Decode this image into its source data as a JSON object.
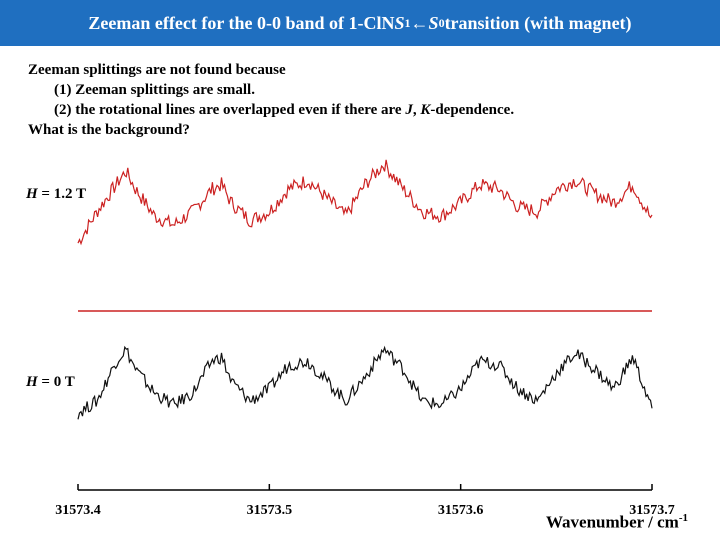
{
  "header": {
    "title_pre": "Zeeman effect for the 0-0 band of 1-ClN ",
    "s1": "S",
    "s1_sub": "1",
    "arrow": "←",
    "s0": "S",
    "s0_sub": "0",
    "title_post": " transition (with magnet)"
  },
  "notes": {
    "line1": "Zeeman splittings are not found because",
    "line2": "(1) Zeeman splittings are small.",
    "line3_pre": "(2) the rotational lines are overlapped even if there are ",
    "line3_j": "J",
    "line3_mid": ", ",
    "line3_k": "K",
    "line3_post": "-dependence.",
    "line4": "What is the background?"
  },
  "chart_data": {
    "type": "line",
    "title": "",
    "xlabel": "Wavenumber / cm",
    "xlabel_sup": "-1",
    "xlim": [
      31573.4,
      31573.7
    ],
    "x_ticks": [
      "31573.4",
      "31573.5",
      "31573.6",
      "31573.7"
    ],
    "separator_color": "#cc2222",
    "series": [
      {
        "name": "H = 1.2 T",
        "color": "#cc2222",
        "label_italic": "H",
        "label_rest": " = 1.2 T",
        "x": [
          31573.4,
          31573.41,
          31573.42,
          31573.425,
          31573.43,
          31573.44,
          31573.45,
          31573.46,
          31573.47,
          31573.475,
          31573.48,
          31573.49,
          31573.5,
          31573.51,
          31573.52,
          31573.53,
          31573.54,
          31573.55,
          31573.56,
          31573.57,
          31573.58,
          31573.59,
          31573.6,
          31573.61,
          31573.62,
          31573.63,
          31573.64,
          31573.65,
          31573.66,
          31573.67,
          31573.68,
          31573.69,
          31573.7
        ],
        "values": [
          0.1,
          0.45,
          0.75,
          0.9,
          0.7,
          0.4,
          0.3,
          0.45,
          0.7,
          0.75,
          0.55,
          0.35,
          0.45,
          0.7,
          0.8,
          0.6,
          0.4,
          0.75,
          0.98,
          0.7,
          0.45,
          0.4,
          0.55,
          0.75,
          0.7,
          0.5,
          0.45,
          0.7,
          0.8,
          0.65,
          0.55,
          0.75,
          0.35
        ]
      },
      {
        "name": "H = 0 T",
        "color": "#111111",
        "label_italic": "H",
        "label_rest": " = 0 T",
        "x": [
          31573.4,
          31573.41,
          31573.42,
          31573.425,
          31573.43,
          31573.44,
          31573.45,
          31573.46,
          31573.47,
          31573.475,
          31573.48,
          31573.49,
          31573.5,
          31573.51,
          31573.52,
          31573.53,
          31573.54,
          31573.55,
          31573.56,
          31573.57,
          31573.58,
          31573.59,
          31573.6,
          31573.61,
          31573.62,
          31573.63,
          31573.64,
          31573.65,
          31573.66,
          31573.67,
          31573.68,
          31573.69,
          31573.7
        ],
        "values": [
          0.15,
          0.3,
          0.8,
          0.95,
          0.7,
          0.4,
          0.25,
          0.4,
          0.8,
          0.85,
          0.55,
          0.3,
          0.45,
          0.75,
          0.8,
          0.55,
          0.3,
          0.6,
          0.95,
          0.7,
          0.3,
          0.25,
          0.45,
          0.8,
          0.75,
          0.45,
          0.3,
          0.65,
          0.9,
          0.7,
          0.45,
          0.85,
          0.2
        ]
      }
    ]
  }
}
